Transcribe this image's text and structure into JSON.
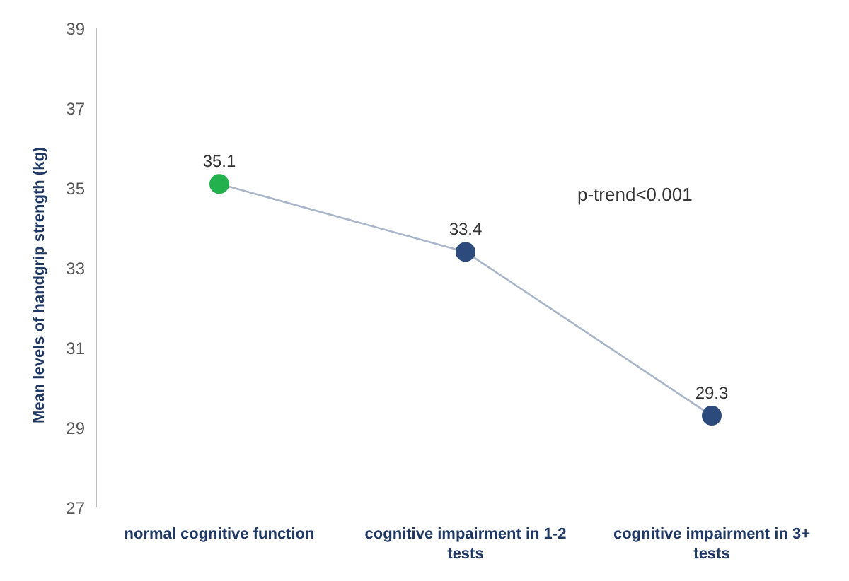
{
  "chart_data": {
    "type": "line",
    "ylabel": "Mean levels of handgrip strength (kg)",
    "categories": [
      "normal cognitive function",
      "cognitive impairment in 1-2 tests",
      "cognitive impairment in 3+ tests"
    ],
    "series": [
      {
        "color": "#a9b6c9",
        "colors": [
          "#22b14c",
          "#2c4a7c",
          "#2c4a7c"
        ],
        "values": [
          35.1,
          33.4,
          29.3
        ]
      }
    ],
    "ylim": [
      27,
      39
    ],
    "yticks": [
      27,
      29,
      31,
      33,
      35,
      37,
      39
    ],
    "grid": false,
    "legend": false,
    "marker": "circle",
    "line_style": "solid",
    "data_labels": true,
    "annotations": [
      "p-trend<0.001"
    ]
  }
}
